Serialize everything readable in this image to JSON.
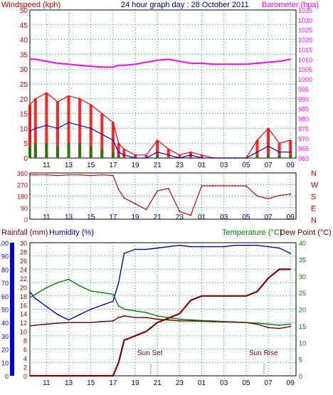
{
  "header": {
    "left_label": "Windspeed (kph)",
    "center_label": "24 hour graph day : 28 October 2011",
    "right_label": "Barometer (hpa)"
  },
  "colors": {
    "windspeed": "#ff0000",
    "gust_avg": "#0000cc",
    "wind_low": "#008800",
    "barometer": "#ff00ff",
    "winddir": "#cc0000",
    "humidity": "#0000cc",
    "temperature": "#008000",
    "dewpoint": "#660000",
    "rainfall": "#880000",
    "grid": "#009999",
    "frame": "#000000",
    "left_axis_text": "#cc0000",
    "right_axis_text": "#ff00ff",
    "bottom_left_axis_text": "#0000cc",
    "bottom_right_axis_text": "#008000"
  },
  "x_ticks": [
    "11",
    "13",
    "15",
    "17",
    "19",
    "21",
    "23",
    "01",
    "03",
    "05",
    "07",
    "09"
  ],
  "compass": [
    "N",
    "W",
    "S",
    "E",
    "N"
  ],
  "bottom_labels": {
    "rainfall": "Rainfall (mm)",
    "humidity": "Humidity (%)",
    "temperature": "Temperature (°C)",
    "dewpoint": "Dew Point (°C)",
    "sunset": "Sun Set",
    "sunrise": "Sun Rise"
  },
  "chart_data": [
    {
      "type": "line",
      "x_hours": [
        9.5,
        10,
        11,
        12,
        13,
        14,
        15,
        16,
        17,
        17.5,
        18,
        19,
        20,
        21,
        22,
        23,
        24,
        25,
        26,
        27,
        28,
        29,
        30,
        31,
        32,
        33
      ],
      "windspeed_left_axis": {
        "label": "Windspeed (kph)",
        "ylim": [
          0,
          50
        ],
        "ticks": [
          0,
          5,
          10,
          15,
          20,
          25,
          30,
          35,
          40,
          45,
          50
        ]
      },
      "barometer_right_axis": {
        "label": "Barometer (hpa)",
        "ylim": [
          960,
          1035
        ],
        "ticks": [
          960,
          965,
          970,
          975,
          980,
          985,
          990,
          995,
          1000,
          1005,
          1010,
          1015,
          1020,
          1025,
          1030,
          1035
        ]
      },
      "series": [
        {
          "name": "Windspeed (kph)",
          "values": [
            18,
            20,
            22,
            19,
            21,
            20,
            18,
            15,
            12,
            5,
            3,
            1,
            1,
            6,
            3,
            1,
            2,
            1,
            0,
            0,
            0,
            0,
            6,
            10,
            5,
            6
          ]
        },
        {
          "values": [
            9,
            10,
            11,
            10,
            12,
            11,
            10,
            8,
            6,
            2,
            1,
            0,
            0,
            2,
            1,
            0,
            1,
            0,
            0,
            0,
            0,
            0,
            2,
            4,
            2,
            2
          ]
        },
        {
          "values": [
            4,
            5,
            5,
            4,
            5,
            5,
            4,
            3,
            2,
            1,
            0,
            0,
            0,
            1,
            0,
            0,
            0,
            0,
            0,
            0,
            0,
            0,
            1,
            1,
            1,
            1
          ]
        },
        {
          "name": "Barometer (hpa)",
          "values": [
            1010,
            1010,
            1009,
            1008,
            1007.5,
            1007,
            1006.5,
            1006,
            1006,
            1007,
            1007,
            1007.5,
            1008.5,
            1009.5,
            1010,
            1009,
            1008,
            1008,
            1007.5,
            1007.5,
            1007.5,
            1007.5,
            1008,
            1008.5,
            1009,
            1010
          ]
        }
      ]
    },
    {
      "type": "line",
      "x_hours": [
        9.5,
        10,
        11,
        12,
        13,
        14,
        15,
        16,
        17,
        17.5,
        18,
        19,
        20,
        21,
        22,
        23,
        24,
        25,
        26,
        27,
        28,
        29,
        30,
        31,
        32,
        33
      ],
      "ylim": [
        0,
        360
      ],
      "y_ticks": [
        0,
        90,
        180,
        270,
        360
      ],
      "series": [
        {
          "name": "Wind direction",
          "values": [
            345,
            345,
            345,
            340,
            345,
            345,
            340,
            345,
            340,
            230,
            165,
            120,
            75,
            220,
            240,
            60,
            30,
            260,
            260,
            260,
            260,
            260,
            180,
            160,
            185,
            195
          ]
        }
      ]
    },
    {
      "type": "line",
      "x_hours": [
        9.5,
        10,
        11,
        12,
        13,
        14,
        15,
        16,
        17,
        17.5,
        18,
        19,
        20,
        21,
        22,
        23,
        24,
        25,
        26,
        27,
        28,
        29,
        30,
        31,
        32,
        33
      ],
      "left_axis": {
        "label": "Humidity (%)",
        "ylim": [
          0,
          100
        ],
        "ticks": [
          0,
          10,
          20,
          30,
          40,
          50,
          60,
          70,
          80,
          90,
          100
        ]
      },
      "left_axis_2": {
        "label": "Rainfall (mm)",
        "ylim": [
          0,
          30
        ],
        "ticks": [
          0,
          2,
          4,
          6,
          8,
          10,
          12,
          14,
          16,
          18,
          20,
          22,
          24,
          26,
          28,
          30
        ]
      },
      "right_axis": {
        "label": "Temperature (°C)",
        "ylim": [
          0,
          40
        ],
        "ticks": [
          0,
          5,
          10,
          15,
          20,
          25,
          30,
          35,
          40
        ]
      },
      "series": [
        {
          "name": "Humidity (%)",
          "values": [
            63,
            58,
            52,
            46,
            42,
            46,
            50,
            53,
            56,
            70,
            92,
            95,
            95,
            96,
            97,
            98,
            97,
            97,
            97,
            97,
            98,
            98,
            98,
            97,
            96,
            92
          ]
        },
        {
          "name": "Temperature (°C)",
          "values": [
            23.5,
            24.5,
            26.5,
            28,
            29,
            27,
            25.5,
            25,
            24.5,
            21,
            20,
            19.5,
            19,
            18,
            17.5,
            17,
            16.8,
            16.6,
            16.5,
            16.3,
            16.2,
            16,
            15.8,
            15.5,
            15.2,
            15.5
          ]
        },
        {
          "name": "Dew Point (°C)",
          "values": [
            15,
            15.2,
            15.5,
            15.8,
            16,
            16,
            16,
            16.3,
            16.5,
            17.5,
            18,
            17.5,
            17.5,
            17,
            16.8,
            16.5,
            16.5,
            16.4,
            16.3,
            16.2,
            16.1,
            16,
            15.5,
            14.5,
            14.2,
            14.8
          ]
        },
        {
          "name": "Rainfall (mm)",
          "values": [
            0,
            0,
            0,
            0,
            0,
            0,
            0,
            0,
            0,
            3,
            8,
            9,
            10,
            12,
            13,
            14,
            17,
            18,
            18,
            18,
            18,
            18,
            19,
            22,
            24,
            24
          ]
        }
      ]
    }
  ]
}
